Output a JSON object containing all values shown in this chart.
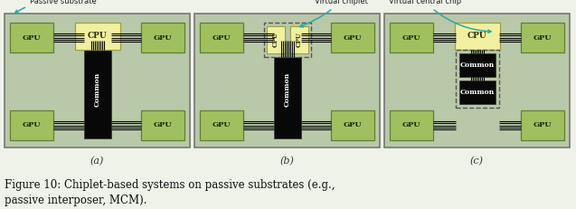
{
  "fig_bg": "#eef2e8",
  "diag_bg": "#b8c8a8",
  "diag_border": "#777777",
  "cpu_fill": "#f0f0a0",
  "cpu_edge": "#a0a040",
  "gpu_fill": "#a0c060",
  "gpu_edge": "#608030",
  "common_fill": "#080808",
  "common_text": "#ffffff",
  "bus_color": "#080808",
  "dashed_color": "#555555",
  "arrow_color": "#30a8a0",
  "text_color": "#222222",
  "label_color": "#333333",
  "annotation_a": "Passive substrate",
  "annotation_b": "Virtual chiplet",
  "annotation_c": "Virtual central chip",
  "label_a": "(a)",
  "label_b": "(b)",
  "label_c": "(c)",
  "caption": "Figure 10: Chiplet-based systems on passive substrates (e.g.,\npassive interposer, MCM)."
}
